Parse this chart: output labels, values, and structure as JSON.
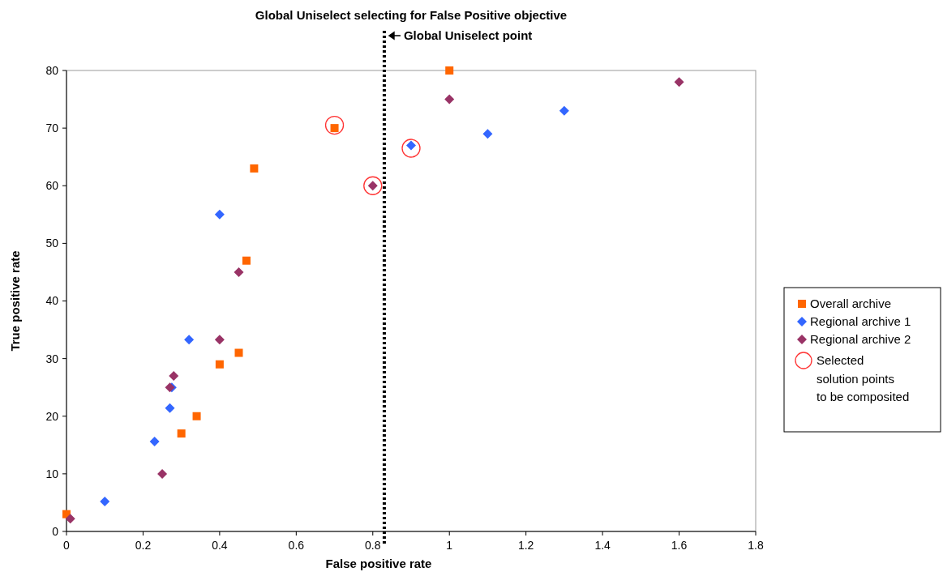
{
  "chart_data": {
    "type": "scatter",
    "title": "Global Uniselect selecting for False Positive objective",
    "xlabel": "False positive rate",
    "ylabel": "True positive rate",
    "xlim": [
      0,
      1.8
    ],
    "xticks": [
      0,
      0.2,
      0.4,
      0.6,
      0.8,
      1,
      1.2,
      1.4,
      1.6,
      1.8
    ],
    "ylim": [
      0,
      80
    ],
    "yticks": [
      0,
      10,
      20,
      30,
      40,
      50,
      60,
      70,
      80
    ],
    "grid": false,
    "legend": "right",
    "ref_lines": [
      {
        "axis": "x",
        "value": 0.83,
        "label": "Global Uniselect point",
        "line_style": "dotted",
        "color": "#000000"
      }
    ],
    "series": [
      {
        "name": "Overall archive",
        "color": "#ff6600",
        "marker": "square",
        "x": [
          0,
          0.3,
          0.34,
          0.4,
          0.45,
          0.47,
          0.49,
          0.7,
          1.0
        ],
        "values": [
          3,
          17,
          20,
          29,
          31,
          47,
          63,
          70,
          80
        ]
      },
      {
        "name": "Regional archive 1",
        "color": "#3366ff",
        "marker": "diamond",
        "x": [
          0.1,
          0.23,
          0.27,
          0.275,
          0.32,
          0.4,
          0.9,
          1.1,
          1.3
        ],
        "values": [
          5.2,
          15.6,
          21.4,
          25,
          33.3,
          55,
          67,
          69,
          73
        ]
      },
      {
        "name": "Regional archive 2",
        "color": "#993366",
        "marker": "diamond",
        "x": [
          0.01,
          0.25,
          0.27,
          0.28,
          0.4,
          0.45,
          0.8,
          1.0,
          1.6
        ],
        "values": [
          2.2,
          10,
          25,
          27,
          33.3,
          45,
          60,
          75,
          78
        ]
      },
      {
        "name": "Selected solution points to be composited",
        "color": "#ff3333",
        "marker": "circle",
        "x": [
          0.7,
          0.8,
          0.9
        ],
        "values": [
          70.5,
          60,
          66.5
        ]
      }
    ]
  }
}
